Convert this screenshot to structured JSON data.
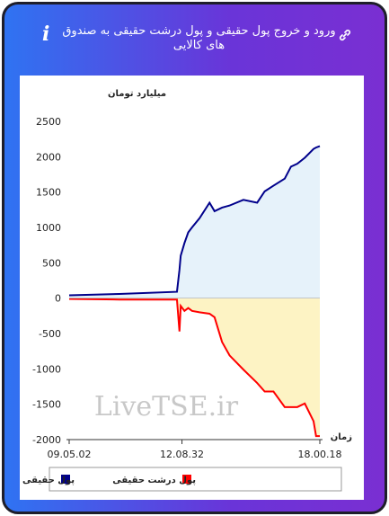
{
  "chart_data": {
    "type": "line",
    "title": "ورود و خروج پول حقیقی و پول درشت حقیقی به صندوق های کالایی",
    "y_label": "میلیارد تومان",
    "x_label": "زمان",
    "watermark": "LiveTSE.ir",
    "x": [
      0,
      20,
      43,
      44,
      44.5,
      46,
      47.5,
      49,
      52,
      56,
      58,
      61,
      64,
      69.5,
      75,
      78,
      81.5,
      86,
      88.5,
      91,
      94,
      97.5,
      98.5,
      100
    ],
    "series": [
      {
        "name": "پول حقیقی",
        "color": "#00008b",
        "fill": "#e6f2fa",
        "values": [
          40,
          60,
          90,
          400,
          600,
          780,
          930,
          1000,
          1130,
          1350,
          1230,
          1280,
          1310,
          1390,
          1350,
          1510,
          1590,
          1690,
          1860,
          1900,
          1985,
          2110,
          2130,
          2150
        ]
      },
      {
        "name": "پول درشت حقیقی",
        "color": "#ff0000",
        "fill": "#fdf3c4",
        "values": [
          -10,
          -20,
          -20,
          -470,
          -110,
          -180,
          -140,
          -180,
          -200,
          -220,
          -270,
          -620,
          -810,
          -1010,
          -1200,
          -1320,
          -1320,
          -1540,
          -1540,
          -1540,
          -1490,
          -1740,
          -1950,
          -1950
        ]
      }
    ],
    "xlim": [
      0,
      100
    ],
    "xticks": [
      {
        "value": 0,
        "label": "09.05.02"
      },
      {
        "value": 45,
        "label": "12.08.32"
      },
      {
        "value": 100,
        "label": "18.00.18"
      }
    ],
    "ylim": [
      -2000,
      2500
    ],
    "yticks": [
      -2000,
      -1500,
      -1000,
      -500,
      0,
      500,
      1000,
      1500,
      2000,
      2500
    ]
  }
}
